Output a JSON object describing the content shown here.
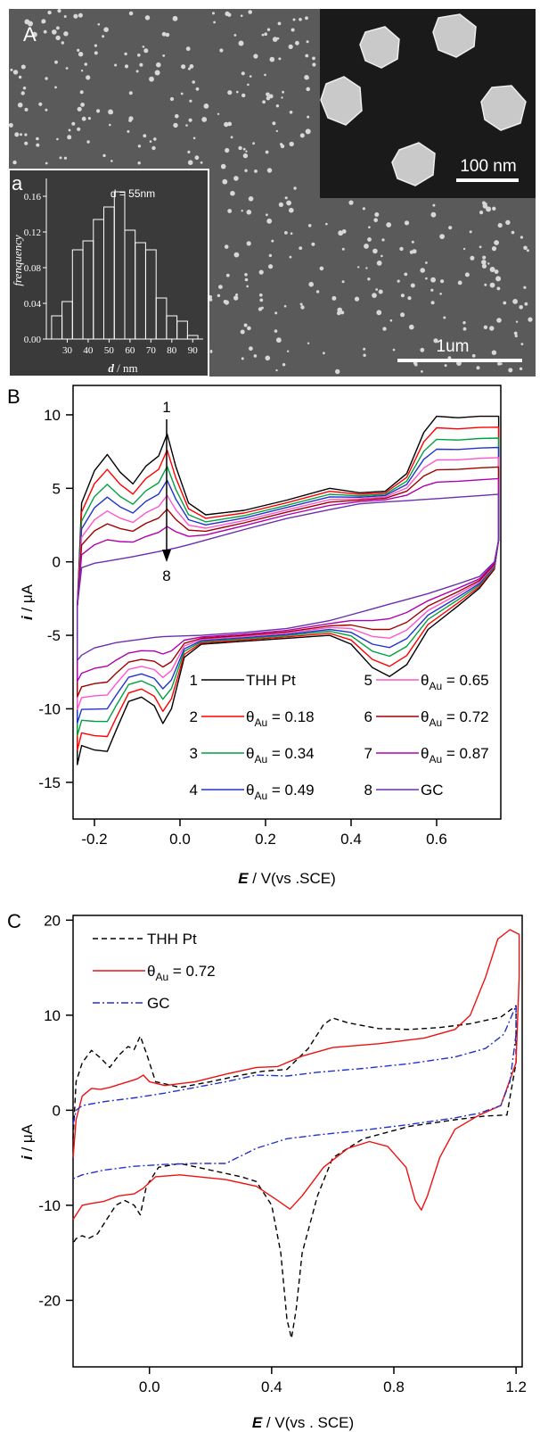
{
  "panel_a": {
    "letter": "A",
    "scalebar_main": "1um",
    "scalebar_inset": "100 nm",
    "inset_letter": "a",
    "inset_note": "d = 55nm",
    "colors": {
      "sem_bg": "#5a5a5a",
      "particle": "#d8d8d8",
      "inset_bg": "#1a1a1a"
    },
    "histogram": {
      "type": "bar",
      "x": [
        25,
        30,
        35,
        40,
        45,
        50,
        55,
        60,
        65,
        70,
        75,
        80,
        85,
        90
      ],
      "values": [
        0.026,
        0.042,
        0.1,
        0.11,
        0.134,
        0.148,
        0.165,
        0.122,
        0.108,
        0.1,
        0.046,
        0.026,
        0.02,
        0.004
      ],
      "xticks": [
        "30",
        "40",
        "50",
        "60",
        "70",
        "80",
        "90"
      ],
      "yticks": [
        "0.00",
        "0.04",
        "0.08",
        "0.12",
        "0.16"
      ],
      "xlabel_var": "d",
      "xlabel_unit": " / nm",
      "ylabel": "frenquency"
    }
  },
  "chart_data": [
    {
      "panel": "B",
      "type": "line",
      "xlabel_var": "E",
      "xlabel_rest": " / V(vs .SCE)",
      "ylabel_var": "i",
      "ylabel_rest": " / μA",
      "xlim": [
        -0.25,
        0.75
      ],
      "ylim": [
        -17.5,
        12.0
      ],
      "xticks": [
        -0.2,
        0.0,
        0.2,
        0.4,
        0.6
      ],
      "xtick_labels": [
        "-0.2",
        "0.0",
        "0.2",
        "0.4",
        "0.6"
      ],
      "yticks": [
        10,
        5,
        0,
        -5,
        -10,
        -15
      ],
      "ytick_labels": [
        "10",
        "5",
        "0",
        "-5",
        "-10",
        "-15"
      ],
      "arrow_top": "1",
      "arrow_bottom": "8",
      "series": [
        {
          "name": "THH Pt",
          "num": "1",
          "color": "#000000",
          "f": 1.0
        },
        {
          "name": "θAu = 0.18",
          "num": "2",
          "color": "#ff0000",
          "f": 0.86
        },
        {
          "name": "θAu = 0.34",
          "num": "3",
          "color": "#00a040",
          "f": 0.72
        },
        {
          "name": "θAu = 0.49",
          "num": "4",
          "color": "#2233cc",
          "f": 0.6
        },
        {
          "name": "θAu = 0.65",
          "num": "5",
          "color": "#ff55cc",
          "f": 0.47
        },
        {
          "name": "θAu = 0.72",
          "num": "6",
          "color": "#a00000",
          "f": 0.35
        },
        {
          "name": "θAu = 0.87",
          "num": "7",
          "color": "#b000b0",
          "f": 0.2
        },
        {
          "name": "GC",
          "num": "8",
          "color": "#6a2fb0",
          "f": 0.0
        }
      ]
    },
    {
      "panel": "C",
      "type": "line",
      "xlabel_var": "E",
      "xlabel_rest": " / V(vs . SCE)",
      "ylabel_var": "i",
      "ylabel_rest": " / μA",
      "xlim": [
        -0.25,
        1.22
      ],
      "ylim": [
        -27.0,
        20.5
      ],
      "xticks": [
        0.0,
        0.4,
        0.8,
        1.2
      ],
      "xtick_labels": [
        "0.0",
        "0.4",
        "0.8",
        "1.2"
      ],
      "yticks": [
        20,
        10,
        0,
        -10,
        -20
      ],
      "ytick_labels": [
        "20",
        "10",
        "0",
        "-10",
        "-20"
      ],
      "series": [
        {
          "name": "THH Pt",
          "color": "#000000",
          "dash": "6,4",
          "anodic": [
            [
              -0.25,
              -3
            ],
            [
              -0.24,
              3
            ],
            [
              -0.22,
              5
            ],
            [
              -0.19,
              6.3
            ],
            [
              -0.16,
              5.5
            ],
            [
              -0.13,
              4.5
            ],
            [
              -0.1,
              5.8
            ],
            [
              -0.07,
              6.7
            ],
            [
              -0.05,
              6.4
            ],
            [
              -0.03,
              7.8
            ],
            [
              -0.01,
              6
            ],
            [
              0.02,
              3
            ],
            [
              0.1,
              2.4
            ],
            [
              0.2,
              3
            ],
            [
              0.3,
              3.7
            ],
            [
              0.37,
              4.1
            ],
            [
              0.45,
              4.3
            ],
            [
              0.52,
              6.5
            ],
            [
              0.57,
              9
            ],
            [
              0.6,
              9.7
            ],
            [
              0.65,
              9.2
            ],
            [
              0.75,
              8.6
            ],
            [
              0.85,
              8.5
            ],
            [
              0.95,
              8.7
            ],
            [
              1.05,
              9.1
            ],
            [
              1.15,
              9.8
            ],
            [
              1.2,
              11
            ]
          ],
          "cathodic": [
            [
              1.2,
              5
            ],
            [
              1.17,
              -0.5
            ],
            [
              1.1,
              -0.6
            ],
            [
              1.0,
              -1
            ],
            [
              0.85,
              -1.7
            ],
            [
              0.7,
              -3
            ],
            [
              0.6,
              -5
            ],
            [
              0.55,
              -9
            ],
            [
              0.5,
              -15
            ],
            [
              0.48,
              -21
            ],
            [
              0.465,
              -24
            ],
            [
              0.45,
              -22
            ],
            [
              0.43,
              -15
            ],
            [
              0.4,
              -10
            ],
            [
              0.35,
              -7.5
            ],
            [
              0.3,
              -7
            ],
            [
              0.2,
              -6.3
            ],
            [
              0.1,
              -5.6
            ],
            [
              0.03,
              -6
            ],
            [
              -0.01,
              -8
            ],
            [
              -0.03,
              -11
            ],
            [
              -0.05,
              -10
            ],
            [
              -0.08,
              -9.5
            ],
            [
              -0.11,
              -10
            ],
            [
              -0.14,
              -11.5
            ],
            [
              -0.17,
              -13
            ],
            [
              -0.2,
              -13.5
            ],
            [
              -0.22,
              -13.2
            ],
            [
              -0.24,
              -13.5
            ],
            [
              -0.25,
              -14
            ]
          ]
        },
        {
          "name": "θAu = 0.72",
          "color": "#ee1111",
          "dash": "",
          "anodic": [
            [
              -0.25,
              -5
            ],
            [
              -0.24,
              -1
            ],
            [
              -0.22,
              1.5
            ],
            [
              -0.19,
              2.3
            ],
            [
              -0.16,
              2.2
            ],
            [
              -0.13,
              2.4
            ],
            [
              -0.1,
              2.7
            ],
            [
              -0.07,
              3
            ],
            [
              -0.04,
              3.3
            ],
            [
              -0.02,
              3.7
            ],
            [
              0,
              3
            ],
            [
              0.05,
              2.6
            ],
            [
              0.15,
              3
            ],
            [
              0.25,
              3.8
            ],
            [
              0.35,
              4.5
            ],
            [
              0.42,
              4.6
            ],
            [
              0.5,
              5.7
            ],
            [
              0.6,
              6.6
            ],
            [
              0.75,
              7
            ],
            [
              0.9,
              7.6
            ],
            [
              1.0,
              8.5
            ],
            [
              1.05,
              10
            ],
            [
              1.1,
              14
            ],
            [
              1.14,
              18
            ],
            [
              1.18,
              19
            ],
            [
              1.21,
              18.5
            ]
          ],
          "cathodic": [
            [
              1.21,
              14
            ],
            [
              1.2,
              5
            ],
            [
              1.15,
              0.5
            ],
            [
              1.08,
              -0.5
            ],
            [
              1.0,
              -2
            ],
            [
              0.95,
              -5
            ],
            [
              0.91,
              -9
            ],
            [
              0.89,
              -10.5
            ],
            [
              0.87,
              -9.5
            ],
            [
              0.84,
              -6
            ],
            [
              0.78,
              -3.8
            ],
            [
              0.72,
              -3.3
            ],
            [
              0.65,
              -4
            ],
            [
              0.57,
              -6
            ],
            [
              0.5,
              -9
            ],
            [
              0.46,
              -10.4
            ],
            [
              0.42,
              -9.5
            ],
            [
              0.35,
              -8
            ],
            [
              0.25,
              -7.3
            ],
            [
              0.1,
              -6.8
            ],
            [
              0.02,
              -7
            ],
            [
              -0.02,
              -8.2
            ],
            [
              -0.05,
              -8.8
            ],
            [
              -0.1,
              -9
            ],
            [
              -0.15,
              -9.6
            ],
            [
              -0.19,
              -9.8
            ],
            [
              -0.22,
              -10
            ],
            [
              -0.24,
              -11
            ],
            [
              -0.25,
              -11.5
            ]
          ]
        },
        {
          "name": "GC",
          "color": "#2233cc",
          "dash": "8,3,2,3",
          "anodic": [
            [
              -0.25,
              -1.5
            ],
            [
              -0.24,
              0
            ],
            [
              -0.22,
              0.5
            ],
            [
              -0.15,
              0.9
            ],
            [
              -0.05,
              1.3
            ],
            [
              0.05,
              1.8
            ],
            [
              0.15,
              2.4
            ],
            [
              0.25,
              3
            ],
            [
              0.35,
              3.7
            ],
            [
              0.45,
              3.6
            ],
            [
              0.55,
              4
            ],
            [
              0.7,
              4.4
            ],
            [
              0.85,
              4.9
            ],
            [
              1.0,
              5.6
            ],
            [
              1.1,
              6.5
            ],
            [
              1.16,
              8
            ],
            [
              1.2,
              11
            ]
          ],
          "cathodic": [
            [
              1.2,
              8
            ],
            [
              1.18,
              3
            ],
            [
              1.15,
              0.5
            ],
            [
              1.08,
              -0.3
            ],
            [
              1.0,
              -0.8
            ],
            [
              0.85,
              -1.5
            ],
            [
              0.7,
              -2.1
            ],
            [
              0.55,
              -2.6
            ],
            [
              0.45,
              -3
            ],
            [
              0.35,
              -4
            ],
            [
              0.25,
              -5.6
            ],
            [
              0.15,
              -5.6
            ],
            [
              0.05,
              -5.7
            ],
            [
              -0.05,
              -5.9
            ],
            [
              -0.15,
              -6.3
            ],
            [
              -0.22,
              -6.8
            ],
            [
              -0.25,
              -7.2
            ]
          ]
        }
      ]
    }
  ]
}
